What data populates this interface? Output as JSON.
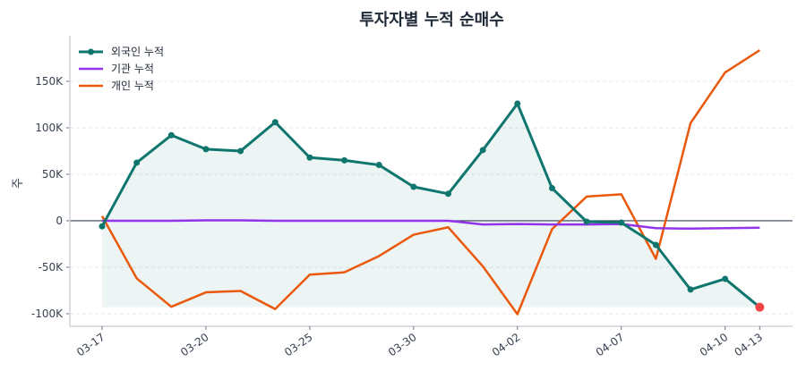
{
  "chart_data": {
    "type": "line",
    "title": "투자자별 누적 순매수",
    "xlabel": "",
    "ylabel": "주",
    "categories_count": 20,
    "x_tick_labels": [
      {
        "index": 0,
        "label": "03-17"
      },
      {
        "index": 3,
        "label": "03-20"
      },
      {
        "index": 6,
        "label": "03-25"
      },
      {
        "index": 9,
        "label": "03-30"
      },
      {
        "index": 12,
        "label": "04-02"
      },
      {
        "index": 15,
        "label": "04-07"
      },
      {
        "index": 18,
        "label": "04-10"
      },
      {
        "index": 19,
        "label": "04-13"
      }
    ],
    "y_ticks": [
      -100000,
      -50000,
      0,
      50000,
      100000,
      150000
    ],
    "y_tick_labels": [
      "-100K",
      "-50K",
      "0",
      "50K",
      "100K",
      "150K"
    ],
    "ylim": [
      -113500,
      199000
    ],
    "grid": "horizontal dashed",
    "legend_position": "top-left",
    "series": [
      {
        "name": "외국인 누적",
        "color": "#0f766e",
        "markers": true,
        "fill_to_min": true,
        "values": [
          -6000,
          62500,
          92000,
          77000,
          75000,
          106000,
          68000,
          65000,
          60000,
          36500,
          29000,
          76000,
          126000,
          35000,
          -1000,
          -2000,
          -26000,
          -74000,
          -62500,
          -93000
        ]
      },
      {
        "name": "기관 누적",
        "color": "#9333ea",
        "markers": false,
        "values": [
          0,
          0,
          0,
          500,
          500,
          0,
          0,
          0,
          0,
          0,
          0,
          -4000,
          -3500,
          -4000,
          -4000,
          -3500,
          -8000,
          -8500,
          -8000,
          -7500
        ]
      },
      {
        "name": "개인 누적",
        "color": "#ea580c",
        "markers": false,
        "values": [
          5000,
          -62000,
          -92500,
          -77000,
          -75500,
          -95000,
          -58000,
          -55500,
          -38000,
          -15000,
          -7000,
          -49000,
          -100500,
          -9000,
          26000,
          28500,
          -41000,
          105000,
          159500,
          183500
        ]
      }
    ],
    "highlight_last_point": {
      "series": "외국인 누적",
      "color": "#ef4444"
    }
  }
}
